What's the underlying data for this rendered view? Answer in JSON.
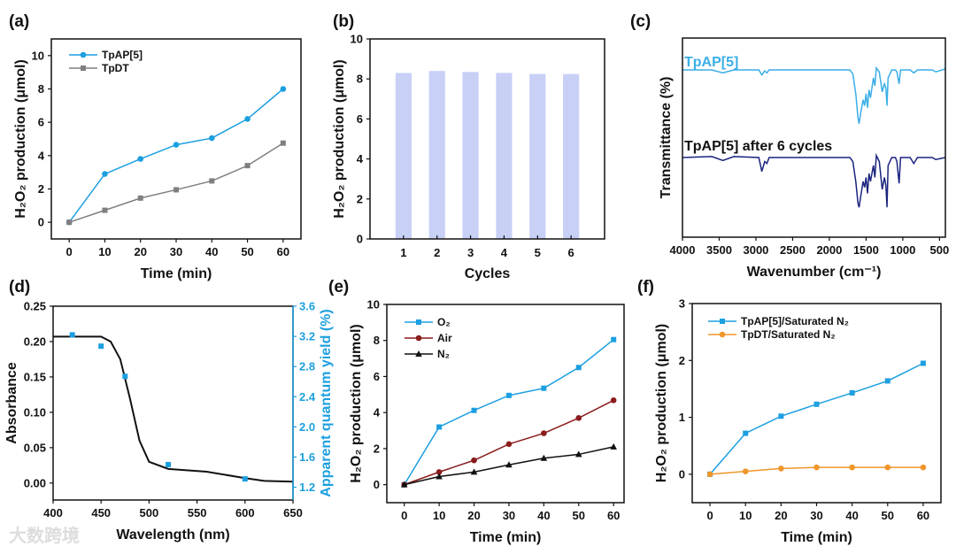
{
  "watermark": "大数跨境",
  "colors": {
    "blue": "#1c9fe0",
    "gray": "#7f7f7f",
    "darkred": "#8b1c1c",
    "black": "#111111",
    "orange": "#f0962a",
    "bar": "#c9d0f6",
    "ftir_top": "#3aaee8",
    "ftir_bottom": "#1a237e"
  },
  "chart_data": [
    {
      "panel_label": "(a)",
      "type": "line",
      "xlabel": "Time (min)",
      "ylabel": "H₂O₂ production (μmol)",
      "xlim": [
        -5,
        65
      ],
      "ylim": [
        -1,
        11
      ],
      "xticks": [
        0,
        10,
        20,
        30,
        40,
        50,
        60
      ],
      "yticks": [
        0,
        2,
        4,
        6,
        8,
        10
      ],
      "x": [
        0,
        10,
        20,
        30,
        40,
        50,
        60
      ],
      "series": [
        {
          "name": "TpAP[5]",
          "color": "#1c9fe0",
          "marker": "circle",
          "values": [
            0,
            2.9,
            3.8,
            4.65,
            5.05,
            6.2,
            8.0
          ]
        },
        {
          "name": "TpDT",
          "color": "#7f7f7f",
          "marker": "square",
          "values": [
            0,
            0.72,
            1.45,
            1.95,
            2.48,
            3.4,
            4.75
          ]
        }
      ],
      "legend": "top-left"
    },
    {
      "panel_label": "(b)",
      "type": "bar",
      "xlabel": "Cycles",
      "ylabel": "H₂O₂ production (μmol)",
      "categories": [
        "1",
        "2",
        "3",
        "4",
        "5",
        "6"
      ],
      "values": [
        8.3,
        8.4,
        8.35,
        8.3,
        8.25,
        8.25
      ],
      "ylim": [
        0,
        10
      ],
      "yticks": [
        0,
        2,
        4,
        6,
        8,
        10
      ]
    },
    {
      "panel_label": "(c)",
      "type": "line",
      "xlabel": "Wavenumber (cm⁻¹)",
      "ylabel": "Transmittance (%)",
      "xlim": [
        4000,
        420
      ],
      "ylim": [
        0,
        100
      ],
      "xticks": [
        4000,
        3500,
        3000,
        2500,
        2000,
        1500,
        1000,
        500
      ],
      "yticks": [],
      "x": [
        4000,
        3600,
        3450,
        3300,
        2960,
        2920,
        2880,
        2850,
        2820,
        1720,
        1680,
        1640,
        1610,
        1595,
        1575,
        1540,
        1520,
        1500,
        1480,
        1460,
        1440,
        1400,
        1380,
        1360,
        1320,
        1280,
        1250,
        1230,
        1215,
        1200,
        1150,
        1100,
        1080,
        1050,
        1030,
        900,
        850,
        800,
        600,
        550,
        420
      ],
      "series": [
        {
          "name": "TpAP[5]",
          "color": "#3aaee8",
          "values": [
            84,
            84,
            82.5,
            84,
            84,
            81.5,
            83.5,
            82.5,
            84,
            84,
            82,
            72,
            60,
            57,
            62,
            69,
            66,
            72,
            65,
            74,
            70,
            80,
            76,
            85,
            83,
            73,
            77,
            75,
            66,
            80,
            84,
            84,
            83,
            77,
            84,
            84,
            82.5,
            84,
            84,
            83,
            84.5
          ]
        },
        {
          "name": "TpAP[5] after 6 cycles",
          "color": "#1a237e",
          "values": [
            40,
            40.5,
            38.5,
            40.5,
            40,
            33,
            38,
            37,
            40,
            40,
            38,
            28,
            17,
            15,
            20,
            28,
            25,
            30,
            22,
            32,
            28,
            36,
            30,
            41,
            38,
            24,
            30,
            26,
            15,
            36,
            40,
            40,
            38,
            27,
            40,
            40,
            37,
            40,
            40,
            39,
            40
          ]
        }
      ]
    },
    {
      "panel_label": "(d)",
      "type": "line",
      "xlabel": "Wavelength (nm)",
      "ylabel": "Absorbance",
      "ylabel_right": "Apparent quantum yield (%)",
      "xlim": [
        400,
        650
      ],
      "ylim": [
        -0.024,
        0.25
      ],
      "ylim_right": [
        1.03,
        3.6
      ],
      "xticks": [
        400,
        450,
        500,
        550,
        600,
        650
      ],
      "yticks": [
        "0.00",
        "0.05",
        "0.10",
        "0.15",
        "0.20",
        "0.25"
      ],
      "yticks_right": [
        "1.2",
        "1.6",
        "2.0",
        "2.4",
        "2.8",
        "3.2",
        "3.6"
      ],
      "series": [
        {
          "name": "Absorbance",
          "color": "#111111",
          "x": [
            400,
            450,
            460,
            470,
            480,
            490,
            500,
            520,
            560,
            600,
            620,
            650
          ],
          "values": [
            0.207,
            0.207,
            0.2,
            0.175,
            0.12,
            0.06,
            0.03,
            0.02,
            0.016,
            0.007,
            0.003,
            0.002
          ]
        },
        {
          "name": "AQY",
          "axis": "right",
          "color": "#1c9fe0",
          "marker": "square",
          "x": [
            420,
            450,
            475,
            520,
            600
          ],
          "values": [
            3.22,
            3.07,
            2.67,
            1.5,
            1.31
          ]
        }
      ]
    },
    {
      "panel_label": "(e)",
      "type": "line",
      "xlabel": "Time (min)",
      "ylabel": "H₂O₂ production (μmol)",
      "xlim": [
        -5,
        63
      ],
      "ylim": [
        -1,
        10
      ],
      "xticks": [
        0,
        10,
        20,
        30,
        40,
        50,
        60
      ],
      "yticks": [
        0,
        2,
        4,
        6,
        8,
        10
      ],
      "x": [
        0,
        10,
        20,
        30,
        40,
        50,
        60
      ],
      "series": [
        {
          "name": "O₂",
          "color": "#1c9fe0",
          "marker": "square",
          "values": [
            0,
            3.2,
            4.12,
            4.95,
            5.35,
            6.5,
            8.05
          ]
        },
        {
          "name": "Air",
          "color": "#8b1c1c",
          "marker": "circle",
          "values": [
            0,
            0.7,
            1.35,
            2.25,
            2.85,
            3.7,
            4.68
          ]
        },
        {
          "name": "N₂",
          "color": "#111111",
          "marker": "triangle",
          "values": [
            0,
            0.45,
            0.7,
            1.1,
            1.47,
            1.68,
            2.1
          ]
        }
      ],
      "legend": "top-left"
    },
    {
      "panel_label": "(f)",
      "type": "line",
      "xlabel": "Time (min)",
      "ylabel": "H₂O₂ production (μmol)",
      "xlim": [
        -5,
        65
      ],
      "ylim": [
        -0.5,
        3
      ],
      "xticks": [
        0,
        10,
        20,
        30,
        40,
        50,
        60
      ],
      "yticks": [
        0,
        1,
        2,
        3
      ],
      "x": [
        0,
        10,
        20,
        30,
        40,
        50,
        60
      ],
      "series": [
        {
          "name": "TpAP[5]/Saturated N₂",
          "color": "#1c9fe0",
          "marker": "square",
          "values": [
            0,
            0.72,
            1.02,
            1.23,
            1.43,
            1.64,
            1.95
          ]
        },
        {
          "name": "TpDT/Saturated N₂",
          "color": "#f0962a",
          "marker": "circle",
          "values": [
            0,
            0.05,
            0.1,
            0.12,
            0.12,
            0.12,
            0.12
          ]
        }
      ],
      "legend": "top-left"
    }
  ]
}
